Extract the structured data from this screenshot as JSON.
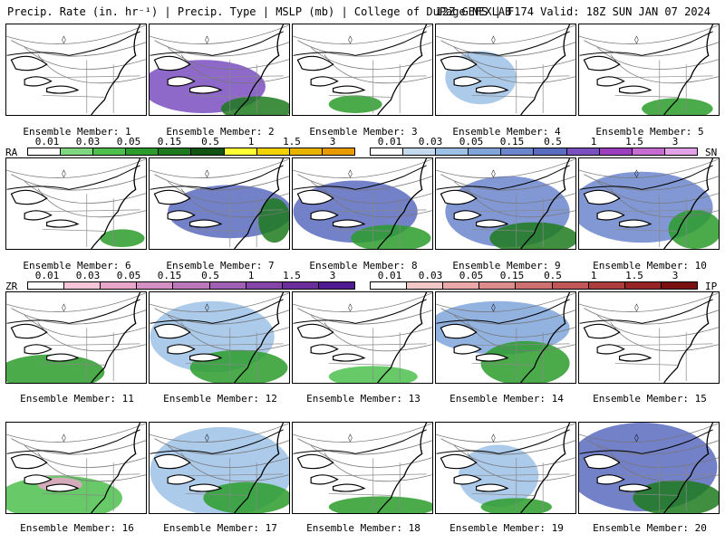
{
  "header": {
    "left": "Precip. Rate (in. hr⁻¹) | Precip. Type | MSLP (mb) | College of DuPage NEXLAB",
    "right": "12Z GEFS | F174 Valid: 18Z SUN JAN 07 2024"
  },
  "colors": {
    "rain": [
      "#ffffff",
      "#7fd87f",
      "#4cbf4c",
      "#2b9c2b",
      "#1f7a1f",
      "#125212",
      "#ffff33",
      "#f2d300",
      "#e8b400",
      "#e89b00"
    ],
    "snow": [
      "#ffffff",
      "#c3d9ee",
      "#9dc1e6",
      "#7fa5d9",
      "#6b86cc",
      "#5b6bc0",
      "#7a4fbf",
      "#9b3fbf",
      "#c56bd1",
      "#e3a2e8"
    ],
    "freezing_rain": [
      "#ffffff",
      "#f6c6d8",
      "#e8a6c8",
      "#d48fc3",
      "#bb79bb",
      "#a060b3",
      "#8545a8",
      "#6a2e9c",
      "#4f1a90"
    ],
    "ice_pellets": [
      "#ffffff",
      "#f5c8c8",
      "#eaa8a8",
      "#dd8c8c",
      "#cf7070",
      "#c05656",
      "#ad3c3c",
      "#962424",
      "#7a1010"
    ]
  },
  "legends": {
    "rain": {
      "code": "RA",
      "values": [
        "0.01",
        "0.03",
        "0.05",
        "0.15",
        "0.5",
        "1",
        "1.5",
        "3"
      ]
    },
    "snow": {
      "code": "SN",
      "values": [
        "0.01",
        "0.03",
        "0.05",
        "0.15",
        "0.5",
        "1",
        "1.5",
        "3"
      ]
    },
    "freezing_rain": {
      "code": "ZR",
      "values": [
        "0.01",
        "0.03",
        "0.05",
        "0.15",
        "0.5",
        "1",
        "1.5",
        "3"
      ]
    },
    "ice_pellets": {
      "code": "IP",
      "values": [
        "0.01",
        "0.03",
        "0.05",
        "0.15",
        "0.5",
        "1",
        "1.5",
        "3"
      ]
    }
  },
  "members": [
    "Ensemble Member: 1",
    "Ensemble Member: 2",
    "Ensemble Member: 3",
    "Ensemble Member: 4",
    "Ensemble Member: 5",
    "Ensemble Member: 6",
    "Ensemble Member: 7",
    "Ensemble Member: 8",
    "Ensemble Member: 9",
    "Ensemble Member: 10",
    "Ensemble Member: 11",
    "Ensemble Member: 12",
    "Ensemble Member: 13",
    "Ensemble Member: 14",
    "Ensemble Member: 15",
    "Ensemble Member: 16",
    "Ensemble Member: 17",
    "Ensemble Member: 18",
    "Ensemble Member: 19",
    "Ensemble Member: 20"
  ]
}
